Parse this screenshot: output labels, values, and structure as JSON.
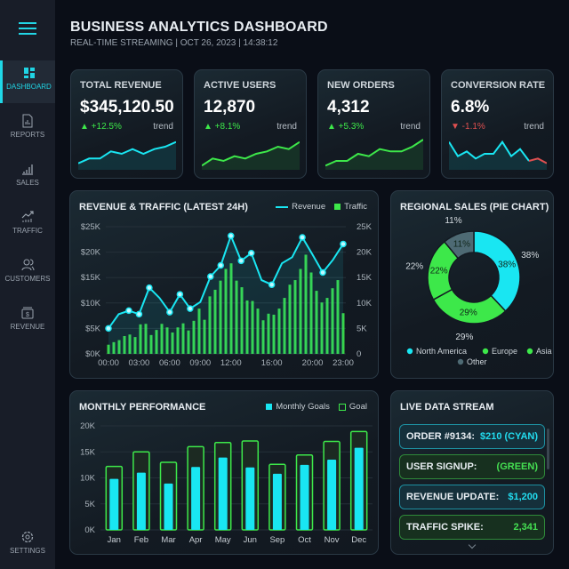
{
  "header": {
    "title": "BUSINESS ANALYTICS DASHBOARD",
    "subtitle": "REAL-TIME STREAMING | OCT 26, 2023 | 14:38:12"
  },
  "sidebar": {
    "items": [
      {
        "label": "DASHBOARD",
        "icon": "dashboard-icon",
        "active": true
      },
      {
        "label": "REPORTS",
        "icon": "report-icon"
      },
      {
        "label": "SALES",
        "icon": "bar-chart-icon"
      },
      {
        "label": "TRAFFIC",
        "icon": "trending-up-icon"
      },
      {
        "label": "CUSTOMERS",
        "icon": "users-icon"
      },
      {
        "label": "REVENUE",
        "icon": "dollar-icon"
      }
    ],
    "settings": "SETTINGS"
  },
  "colors": {
    "cyan": "#19e6f2",
    "green": "#3de84a",
    "red": "#e05050",
    "other": "#4e6a74"
  },
  "kpis": [
    {
      "label": "TOTAL REVENUE",
      "value": "$345,120.50",
      "change": "▲ +12.5%",
      "direction": "up",
      "trend": "trend",
      "spark": [
        2,
        4,
        4,
        7,
        6,
        8,
        6,
        8,
        9,
        11
      ],
      "color": "#19e6f2"
    },
    {
      "label": "ACTIVE USERS",
      "value": "12,870",
      "change": "▲ +8.1%",
      "direction": "up",
      "trend": "trend",
      "spark": [
        1,
        4,
        3,
        5,
        4,
        6,
        7,
        9,
        8,
        11
      ],
      "color": "#3de84a"
    },
    {
      "label": "NEW ORDERS",
      "value": "4,312",
      "change": "▲ +5.3%",
      "direction": "up",
      "trend": "trend",
      "spark": [
        1,
        3,
        3,
        6,
        5,
        8,
        7,
        7,
        9,
        12
      ],
      "color": "#3de84a"
    },
    {
      "label": "CONVERSION RATE",
      "value": "6.8%",
      "change": "▼ -1.1%",
      "direction": "down",
      "trend": "trend",
      "spark": [
        11,
        5,
        7,
        4,
        6,
        6,
        11,
        5,
        8,
        3,
        4,
        2
      ],
      "color": "#19e6f2"
    }
  ],
  "chart_data": [
    {
      "type": "bar+line",
      "title": "REVENUE & TRAFFIC (LATEST 24H)",
      "legend": [
        "Revenue",
        "Traffic"
      ],
      "x_ticks": [
        "00:00",
        "03:00",
        "06:00",
        "09:00",
        "12:00",
        "16:00",
        "20:00",
        "23:00"
      ],
      "y_left_ticks": [
        "$0K",
        "$5K",
        "$10K",
        "$15K",
        "$20K",
        "$25K"
      ],
      "y_right_ticks": [
        "0",
        "5K",
        "10K",
        "15K",
        "20K",
        "25K"
      ],
      "ylim": [
        0,
        25000
      ],
      "revenue": [
        5000,
        7800,
        8500,
        7800,
        13000,
        11000,
        8200,
        11700,
        8900,
        10200,
        15200,
        17400,
        23200,
        18300,
        19800,
        14500,
        13600,
        17800,
        19000,
        22900,
        19500,
        16000,
        18500,
        21600
      ],
      "traffic": [
        1800,
        2300,
        2700,
        3500,
        3800,
        3300,
        5800,
        5900,
        3700,
        4700,
        5900,
        5200,
        4200,
        5200,
        6000,
        4600,
        6500,
        8900,
        6700,
        11300,
        12600,
        14400,
        16700,
        17800,
        14400,
        13100,
        10500,
        10400,
        8900,
        6600,
        7900,
        7700,
        8900,
        11000,
        13600,
        14500,
        16700,
        19500,
        16000,
        12400,
        10100,
        11000,
        12900,
        14500,
        8000
      ]
    },
    {
      "type": "pie",
      "title": "REGIONAL SALES (PIE CHART)",
      "slices": [
        {
          "label": "North America",
          "value": 38,
          "color": "#19e6f2"
        },
        {
          "label": "Asia",
          "value": 29,
          "color": "#3de84a"
        },
        {
          "label": "Europe",
          "value": 22,
          "color": "#3de84a"
        },
        {
          "label": "Other",
          "value": 11,
          "color": "#4e6a74"
        }
      ],
      "legend": [
        {
          "label": "North America",
          "color": "#19e6f2"
        },
        {
          "label": "Europe",
          "color": "#3de84a"
        },
        {
          "label": "Asia",
          "color": "#3de84a"
        },
        {
          "label": "Other",
          "color": "#4e6a74"
        }
      ]
    },
    {
      "type": "bar",
      "title": "MONTHLY PERFORMANCE",
      "legend": [
        "Monthly Goals",
        "Goal"
      ],
      "categories": [
        "Jan",
        "Feb",
        "Mar",
        "Apr",
        "May",
        "Jun",
        "Sep",
        "Oct",
        "Nov",
        "Dec"
      ],
      "y_ticks": [
        "0K",
        "5K",
        "10K",
        "15K",
        "20K"
      ],
      "ylim": [
        0,
        20000
      ],
      "series": [
        {
          "name": "Monthly Goals",
          "values": [
            9800,
            11000,
            8900,
            12100,
            13900,
            12000,
            10800,
            12500,
            13500,
            15800
          ]
        },
        {
          "name": "Goal",
          "values": [
            12200,
            15000,
            13000,
            16000,
            16800,
            17100,
            12600,
            14400,
            17000,
            18900
          ]
        }
      ]
    }
  ],
  "stream": {
    "title": "LIVE DATA STREAM",
    "items": [
      {
        "label": "ORDER #9134:",
        "value": "$210 (CYAN)",
        "tone": "cyan"
      },
      {
        "label": "USER SIGNUP:",
        "value": "(GREEN)",
        "tone": "green"
      },
      {
        "label": "REVENUE UPDATE:",
        "value": "$1,200",
        "tone": "cyan"
      },
      {
        "label": "TRAFFIC SPIKE:",
        "value": "2,341",
        "tone": "green"
      }
    ],
    "more_icon": "chevron-down-icon"
  }
}
